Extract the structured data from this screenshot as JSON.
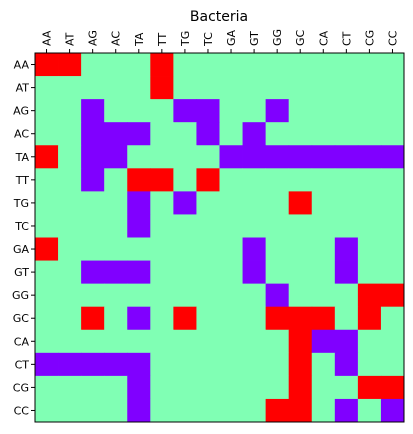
{
  "chart_data": {
    "type": "heatmap",
    "title": "Bacteria",
    "x_labels": [
      "AA",
      "AT",
      "AG",
      "AC",
      "TA",
      "TT",
      "TG",
      "TC",
      "GA",
      "GT",
      "GG",
      "GC",
      "CA",
      "CT",
      "CG",
      "CC"
    ],
    "y_labels": [
      "AA",
      "AT",
      "AG",
      "AC",
      "TA",
      "TT",
      "TG",
      "TC",
      "GA",
      "GT",
      "GG",
      "GC",
      "CA",
      "CT",
      "CG",
      "CC"
    ],
    "x_tick_position": "top",
    "grid": false,
    "legend": "none",
    "category_colors": {
      "0": "#80ffb4",
      "1": "#8000ff",
      "2": "#ff0000"
    },
    "category_meaning": "0 = base (green), 1 = purple, 2 = red",
    "matrix": [
      [
        2,
        2,
        0,
        0,
        0,
        2,
        0,
        0,
        0,
        0,
        0,
        0,
        0,
        0,
        0,
        0
      ],
      [
        0,
        0,
        0,
        0,
        0,
        2,
        0,
        0,
        0,
        0,
        0,
        0,
        0,
        0,
        0,
        0
      ],
      [
        0,
        0,
        1,
        0,
        0,
        0,
        1,
        1,
        0,
        0,
        1,
        0,
        0,
        0,
        0,
        0
      ],
      [
        0,
        0,
        1,
        1,
        1,
        0,
        0,
        1,
        0,
        1,
        0,
        0,
        0,
        0,
        0,
        0
      ],
      [
        2,
        0,
        1,
        1,
        0,
        0,
        0,
        0,
        1,
        1,
        1,
        1,
        1,
        1,
        1,
        1
      ],
      [
        0,
        0,
        1,
        0,
        2,
        2,
        0,
        2,
        0,
        0,
        0,
        0,
        0,
        0,
        0,
        0
      ],
      [
        0,
        0,
        0,
        0,
        1,
        0,
        1,
        0,
        0,
        0,
        0,
        2,
        0,
        0,
        0,
        0
      ],
      [
        0,
        0,
        0,
        0,
        1,
        0,
        0,
        0,
        0,
        0,
        0,
        0,
        0,
        0,
        0,
        0
      ],
      [
        2,
        0,
        0,
        0,
        0,
        0,
        0,
        0,
        0,
        1,
        0,
        0,
        0,
        1,
        0,
        0
      ],
      [
        0,
        0,
        1,
        1,
        1,
        0,
        0,
        0,
        0,
        1,
        0,
        0,
        0,
        1,
        0,
        0
      ],
      [
        0,
        0,
        0,
        0,
        0,
        0,
        0,
        0,
        0,
        0,
        1,
        0,
        0,
        0,
        2,
        2
      ],
      [
        0,
        0,
        2,
        0,
        1,
        0,
        2,
        0,
        0,
        0,
        2,
        2,
        2,
        0,
        2,
        0
      ],
      [
        0,
        0,
        0,
        0,
        0,
        0,
        0,
        0,
        0,
        0,
        0,
        2,
        1,
        1,
        0,
        0
      ],
      [
        1,
        1,
        1,
        1,
        1,
        0,
        0,
        0,
        0,
        0,
        0,
        2,
        0,
        1,
        0,
        0
      ],
      [
        0,
        0,
        0,
        0,
        1,
        0,
        0,
        0,
        0,
        0,
        0,
        2,
        0,
        0,
        2,
        2
      ],
      [
        0,
        0,
        0,
        0,
        1,
        0,
        0,
        0,
        0,
        0,
        2,
        2,
        0,
        1,
        0,
        1
      ]
    ]
  }
}
